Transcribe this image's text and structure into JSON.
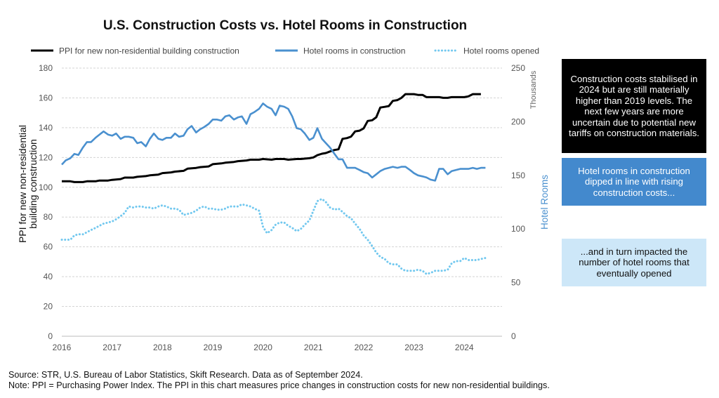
{
  "chart_data": {
    "type": "line",
    "title": "U.S. Construction Costs vs. Hotel Rooms in Construction",
    "legend": {
      "placement": "top",
      "entries": [
        "PPI for new non-residential building construction",
        "Hotel rooms in construction",
        "Hotel rooms opened"
      ]
    },
    "y_left": {
      "label": "PPI for new non-residential building construction",
      "range": [
        0,
        180
      ],
      "ticks": [
        "0",
        "20",
        "40",
        "60",
        "80",
        "100",
        "120",
        "140",
        "160",
        "180"
      ]
    },
    "y_right": {
      "label": "Hotel Rooms",
      "units_label": "Thousands",
      "range": [
        0,
        250
      ],
      "ticks": [
        "0",
        "50",
        "100",
        "150",
        "200",
        "250"
      ]
    },
    "x_axis": {
      "range": [
        2016,
        2024.75
      ],
      "ticks": [
        "2016",
        "2017",
        "2018",
        "2019",
        "2020",
        "2021",
        "2022",
        "2023",
        "2024"
      ]
    },
    "grid": true,
    "colors": {
      "ppi": "#000000",
      "construction": "#4a90cf",
      "opened": "#72c8ef"
    },
    "series": [
      {
        "name": "PPI for new non-residential building construction",
        "axis": "left",
        "style": "solid",
        "points": [
          [
            2016.0,
            104
          ],
          [
            2016.17,
            104
          ],
          [
            2016.25,
            103.5
          ],
          [
            2016.42,
            103.5
          ],
          [
            2016.5,
            104
          ],
          [
            2016.67,
            104
          ],
          [
            2016.75,
            104.5
          ],
          [
            2016.92,
            104.5
          ],
          [
            2017.0,
            105
          ],
          [
            2017.17,
            105.5
          ],
          [
            2017.25,
            106.5
          ],
          [
            2017.42,
            106.5
          ],
          [
            2017.5,
            107
          ],
          [
            2017.67,
            107.5
          ],
          [
            2017.75,
            108
          ],
          [
            2017.92,
            108.5
          ],
          [
            2018.0,
            109.5
          ],
          [
            2018.17,
            110
          ],
          [
            2018.25,
            110.5
          ],
          [
            2018.42,
            111
          ],
          [
            2018.5,
            112.5
          ],
          [
            2018.67,
            113
          ],
          [
            2018.75,
            113.5
          ],
          [
            2018.92,
            114
          ],
          [
            2019.0,
            115.5
          ],
          [
            2019.17,
            116
          ],
          [
            2019.25,
            116.5
          ],
          [
            2019.42,
            117
          ],
          [
            2019.5,
            117.5
          ],
          [
            2019.67,
            118
          ],
          [
            2019.75,
            118.5
          ],
          [
            2019.92,
            118.5
          ],
          [
            2020.0,
            119
          ],
          [
            2020.17,
            118.5
          ],
          [
            2020.25,
            119
          ],
          [
            2020.42,
            119
          ],
          [
            2020.5,
            118.5
          ],
          [
            2020.67,
            119
          ],
          [
            2020.75,
            119
          ],
          [
            2020.92,
            119.5
          ],
          [
            2021.0,
            120
          ],
          [
            2021.08,
            121.5
          ],
          [
            2021.17,
            122.5
          ],
          [
            2021.25,
            123
          ],
          [
            2021.33,
            124
          ],
          [
            2021.42,
            125
          ],
          [
            2021.5,
            125.5
          ],
          [
            2021.58,
            132.5
          ],
          [
            2021.67,
            133
          ],
          [
            2021.75,
            134
          ],
          [
            2021.83,
            137.5
          ],
          [
            2021.92,
            138
          ],
          [
            2022.0,
            139.5
          ],
          [
            2022.08,
            144.5
          ],
          [
            2022.17,
            145
          ],
          [
            2022.25,
            147
          ],
          [
            2022.33,
            153.5
          ],
          [
            2022.42,
            154
          ],
          [
            2022.5,
            154.5
          ],
          [
            2022.58,
            158
          ],
          [
            2022.67,
            158.5
          ],
          [
            2022.75,
            160
          ],
          [
            2022.83,
            162.5
          ],
          [
            2022.92,
            162.5
          ],
          [
            2023.0,
            162.5
          ],
          [
            2023.08,
            162
          ],
          [
            2023.17,
            162
          ],
          [
            2023.25,
            160.5
          ],
          [
            2023.33,
            160.5
          ],
          [
            2023.5,
            160.5
          ],
          [
            2023.58,
            160
          ],
          [
            2023.67,
            160
          ],
          [
            2023.75,
            160.5
          ],
          [
            2023.83,
            160.5
          ],
          [
            2024.0,
            160.5
          ],
          [
            2024.08,
            161
          ],
          [
            2024.17,
            162.5
          ],
          [
            2024.33,
            162.5
          ]
        ]
      },
      {
        "name": "Hotel rooms in construction",
        "axis": "right",
        "style": "solid",
        "points": [
          [
            2016.0,
            160
          ],
          [
            2016.08,
            164
          ],
          [
            2016.17,
            166
          ],
          [
            2016.25,
            170
          ],
          [
            2016.33,
            169
          ],
          [
            2016.42,
            176
          ],
          [
            2016.5,
            181
          ],
          [
            2016.58,
            181
          ],
          [
            2016.67,
            185
          ],
          [
            2016.75,
            188
          ],
          [
            2016.83,
            191
          ],
          [
            2016.92,
            188
          ],
          [
            2017.0,
            187
          ],
          [
            2017.08,
            189
          ],
          [
            2017.17,
            184
          ],
          [
            2017.25,
            186
          ],
          [
            2017.33,
            186
          ],
          [
            2017.42,
            185
          ],
          [
            2017.5,
            180
          ],
          [
            2017.58,
            181
          ],
          [
            2017.67,
            177
          ],
          [
            2017.75,
            184
          ],
          [
            2017.83,
            189
          ],
          [
            2017.92,
            184
          ],
          [
            2018.0,
            183
          ],
          [
            2018.08,
            185
          ],
          [
            2018.17,
            185
          ],
          [
            2018.25,
            189
          ],
          [
            2018.33,
            186
          ],
          [
            2018.42,
            187
          ],
          [
            2018.5,
            193
          ],
          [
            2018.58,
            196
          ],
          [
            2018.67,
            190
          ],
          [
            2018.75,
            193
          ],
          [
            2018.83,
            195
          ],
          [
            2018.92,
            198
          ],
          [
            2019.0,
            202
          ],
          [
            2019.08,
            202
          ],
          [
            2019.17,
            201
          ],
          [
            2019.25,
            205
          ],
          [
            2019.33,
            206
          ],
          [
            2019.42,
            202
          ],
          [
            2019.5,
            204
          ],
          [
            2019.58,
            205
          ],
          [
            2019.67,
            198
          ],
          [
            2019.75,
            207
          ],
          [
            2019.83,
            209
          ],
          [
            2019.92,
            212
          ],
          [
            2020.0,
            217
          ],
          [
            2020.08,
            214
          ],
          [
            2020.17,
            212
          ],
          [
            2020.25,
            206
          ],
          [
            2020.33,
            215
          ],
          [
            2020.42,
            214
          ],
          [
            2020.5,
            212
          ],
          [
            2020.58,
            205
          ],
          [
            2020.67,
            194
          ],
          [
            2020.75,
            193
          ],
          [
            2020.83,
            189
          ],
          [
            2020.92,
            183
          ],
          [
            2021.0,
            185
          ],
          [
            2021.08,
            194
          ],
          [
            2021.17,
            184
          ],
          [
            2021.25,
            180
          ],
          [
            2021.33,
            176
          ],
          [
            2021.42,
            170
          ],
          [
            2021.5,
            165
          ],
          [
            2021.58,
            165
          ],
          [
            2021.67,
            157
          ],
          [
            2021.75,
            157
          ],
          [
            2021.83,
            157
          ],
          [
            2021.92,
            155
          ],
          [
            2022.0,
            153
          ],
          [
            2022.08,
            152
          ],
          [
            2022.17,
            148
          ],
          [
            2022.25,
            151
          ],
          [
            2022.33,
            154
          ],
          [
            2022.42,
            156
          ],
          [
            2022.5,
            157
          ],
          [
            2022.58,
            158
          ],
          [
            2022.67,
            157
          ],
          [
            2022.75,
            158
          ],
          [
            2022.83,
            158
          ],
          [
            2022.92,
            155
          ],
          [
            2023.0,
            152
          ],
          [
            2023.08,
            150
          ],
          [
            2023.17,
            149
          ],
          [
            2023.25,
            148
          ],
          [
            2023.33,
            146
          ],
          [
            2023.42,
            145
          ],
          [
            2023.5,
            156
          ],
          [
            2023.58,
            156
          ],
          [
            2023.67,
            151
          ],
          [
            2023.75,
            154
          ],
          [
            2023.83,
            155
          ],
          [
            2023.92,
            156
          ],
          [
            2024.0,
            156
          ],
          [
            2024.08,
            156
          ],
          [
            2024.17,
            157
          ],
          [
            2024.25,
            156
          ],
          [
            2024.33,
            157
          ],
          [
            2024.42,
            157
          ]
        ]
      },
      {
        "name": "Hotel rooms opened",
        "axis": "right",
        "style": "dotted",
        "points": [
          [
            2016.0,
            90
          ],
          [
            2016.08,
            90
          ],
          [
            2016.17,
            90
          ],
          [
            2016.25,
            94
          ],
          [
            2016.33,
            95
          ],
          [
            2016.42,
            95
          ],
          [
            2016.5,
            97
          ],
          [
            2016.58,
            99
          ],
          [
            2016.67,
            101
          ],
          [
            2016.75,
            103
          ],
          [
            2016.83,
            105
          ],
          [
            2016.92,
            106
          ],
          [
            2017.0,
            107
          ],
          [
            2017.08,
            109
          ],
          [
            2017.17,
            112
          ],
          [
            2017.25,
            115
          ],
          [
            2017.33,
            121
          ],
          [
            2017.42,
            120
          ],
          [
            2017.5,
            121
          ],
          [
            2017.58,
            121
          ],
          [
            2017.67,
            120
          ],
          [
            2017.75,
            120
          ],
          [
            2017.83,
            119
          ],
          [
            2017.92,
            121
          ],
          [
            2018.0,
            122
          ],
          [
            2018.08,
            121
          ],
          [
            2018.17,
            119
          ],
          [
            2018.25,
            119
          ],
          [
            2018.33,
            118
          ],
          [
            2018.42,
            113
          ],
          [
            2018.5,
            114
          ],
          [
            2018.58,
            115
          ],
          [
            2018.67,
            117
          ],
          [
            2018.75,
            120
          ],
          [
            2018.83,
            121
          ],
          [
            2018.92,
            119
          ],
          [
            2019.0,
            119
          ],
          [
            2019.08,
            118
          ],
          [
            2019.17,
            118
          ],
          [
            2019.25,
            119
          ],
          [
            2019.33,
            121
          ],
          [
            2019.42,
            121
          ],
          [
            2019.5,
            121
          ],
          [
            2019.58,
            123
          ],
          [
            2019.67,
            122
          ],
          [
            2019.75,
            121
          ],
          [
            2019.83,
            119
          ],
          [
            2019.92,
            117
          ],
          [
            2020.0,
            102
          ],
          [
            2020.08,
            96
          ],
          [
            2020.17,
            99
          ],
          [
            2020.25,
            104
          ],
          [
            2020.33,
            106
          ],
          [
            2020.42,
            106
          ],
          [
            2020.5,
            103
          ],
          [
            2020.58,
            101
          ],
          [
            2020.67,
            98
          ],
          [
            2020.75,
            100
          ],
          [
            2020.83,
            104
          ],
          [
            2020.92,
            108
          ],
          [
            2021.0,
            117
          ],
          [
            2021.08,
            126
          ],
          [
            2021.17,
            128
          ],
          [
            2021.25,
            125
          ],
          [
            2021.33,
            120
          ],
          [
            2021.42,
            118
          ],
          [
            2021.5,
            119
          ],
          [
            2021.58,
            116
          ],
          [
            2021.67,
            112
          ],
          [
            2021.75,
            110
          ],
          [
            2021.83,
            105
          ],
          [
            2021.92,
            100
          ],
          [
            2022.0,
            94
          ],
          [
            2022.08,
            90
          ],
          [
            2022.17,
            84
          ],
          [
            2022.25,
            78
          ],
          [
            2022.33,
            74
          ],
          [
            2022.42,
            72
          ],
          [
            2022.5,
            68
          ],
          [
            2022.58,
            67
          ],
          [
            2022.67,
            67
          ],
          [
            2022.75,
            63
          ],
          [
            2022.83,
            61
          ],
          [
            2022.92,
            61
          ],
          [
            2023.0,
            61
          ],
          [
            2023.08,
            62
          ],
          [
            2023.17,
            61
          ],
          [
            2023.25,
            58
          ],
          [
            2023.33,
            59
          ],
          [
            2023.42,
            61
          ],
          [
            2023.5,
            61
          ],
          [
            2023.58,
            61
          ],
          [
            2023.67,
            62
          ],
          [
            2023.75,
            68
          ],
          [
            2023.83,
            70
          ],
          [
            2023.92,
            70
          ],
          [
            2024.0,
            73
          ],
          [
            2024.08,
            71
          ],
          [
            2024.17,
            71
          ],
          [
            2024.25,
            71
          ],
          [
            2024.33,
            72
          ],
          [
            2024.42,
            73
          ]
        ]
      }
    ]
  },
  "notes": [
    "Construction costs stabilised in 2024 but are still materially higher than 2019 levels. The next few years are more uncertain due to potential new tariffs on construction materials.",
    "Hotel rooms in construction dipped in line with rising construction costs...",
    "...and in turn impacted the number of hotel rooms that eventually opened"
  ],
  "footer": {
    "source": "Source: STR, U.S. Bureau of Labor Statistics, Skift Research. Data as of September 2024.",
    "note": "Note: PPI = Purchasing Power Index. The PPI in this chart measures price changes in construction costs for new non-residential buildings."
  }
}
